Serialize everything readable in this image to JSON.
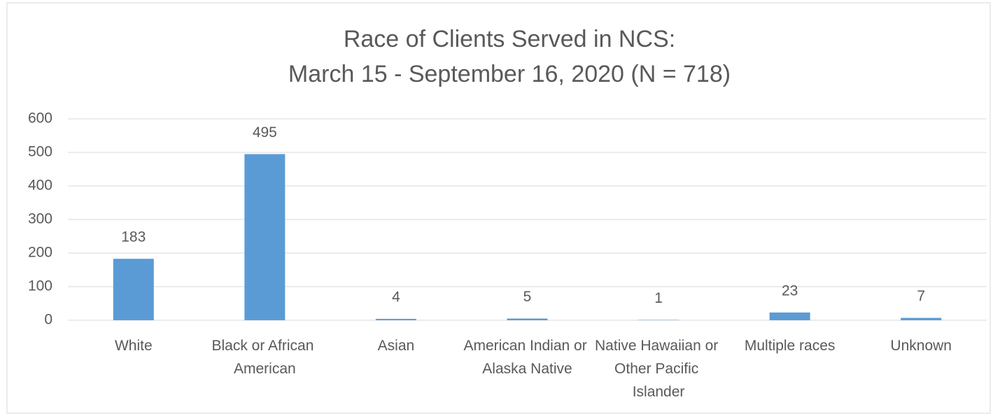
{
  "chart_data": {
    "type": "bar",
    "title": "Race of Clients Served in NCS:",
    "subtitle": "March 15 - September 16, 2020 (N = 718)",
    "categories": [
      "White",
      "Black or African American",
      "Asian",
      "American Indian or Alaska Native",
      "Native Hawaiian or Other Pacific Islander",
      "Multiple races",
      "Unknown"
    ],
    "values": [
      183,
      495,
      4,
      5,
      1,
      23,
      7
    ],
    "color": "#5b9bd5",
    "ylim": [
      0,
      600
    ],
    "yticks": [
      0,
      100,
      200,
      300,
      400,
      500,
      600
    ],
    "grid": true
  }
}
